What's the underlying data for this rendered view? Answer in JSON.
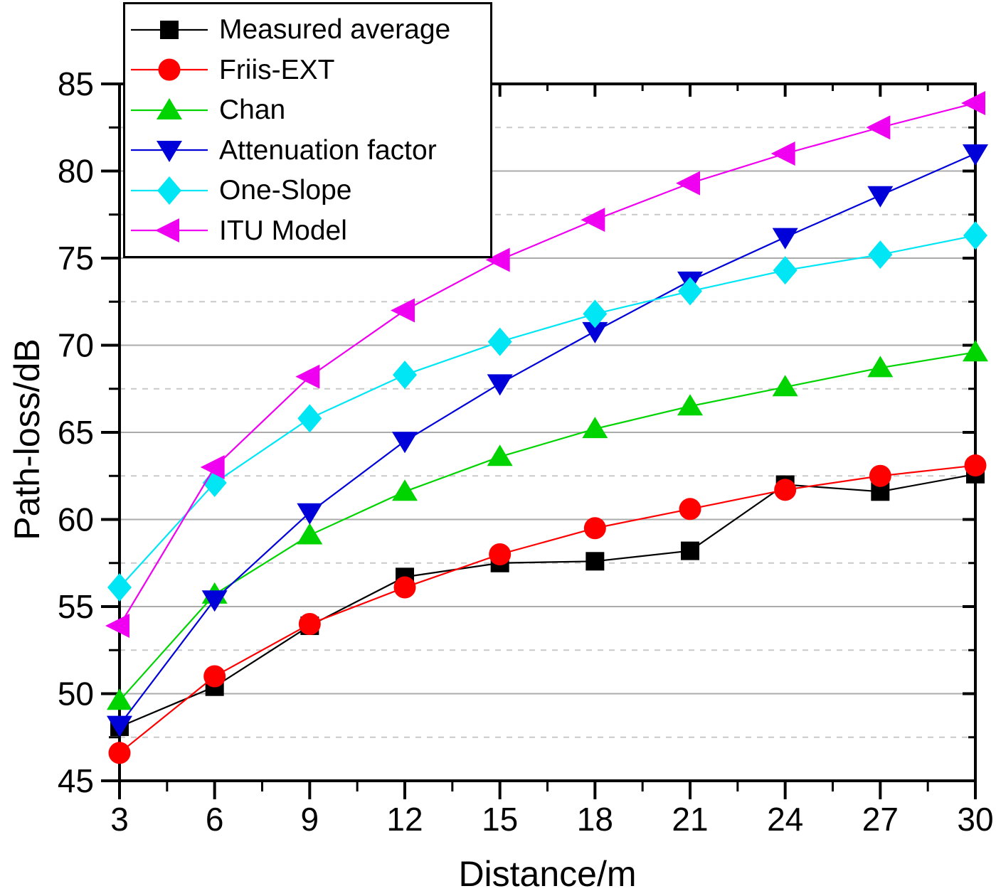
{
  "chart_data": {
    "type": "line",
    "title": "",
    "xlabel": "Distance/m",
    "ylabel": "Path-loss/dB",
    "x": [
      3,
      6,
      9,
      12,
      15,
      18,
      21,
      24,
      27,
      30
    ],
    "xlim": [
      3,
      30
    ],
    "ylim": [
      45,
      85
    ],
    "x_major_ticks": [
      3,
      6,
      9,
      12,
      15,
      18,
      21,
      24,
      27,
      30
    ],
    "x_minor_ticks": [
      4.5,
      7.5,
      10.5,
      13.5,
      16.5,
      19.5,
      22.5,
      25.5,
      28.5
    ],
    "y_major_ticks": [
      45,
      50,
      55,
      60,
      65,
      70,
      75,
      80,
      85
    ],
    "y_minor_ticks": [
      47.5,
      52.5,
      57.5,
      62.5,
      67.5,
      72.5,
      77.5,
      82.5
    ],
    "grid": {
      "horizontal_major": "solid",
      "horizontal_minor": "dashed",
      "vertical": "none"
    },
    "legend_position": "top-left",
    "series": [
      {
        "name": "Measured average",
        "color": "#000000",
        "marker": "square",
        "values": [
          48.1,
          50.4,
          53.9,
          56.7,
          57.5,
          57.6,
          58.2,
          62.0,
          61.6,
          62.6
        ]
      },
      {
        "name": "Friis-EXT",
        "color": "#FF0000",
        "marker": "circle",
        "values": [
          46.6,
          51.0,
          54.0,
          56.1,
          58.0,
          59.5,
          60.6,
          61.7,
          62.5,
          63.1
        ]
      },
      {
        "name": "Chan",
        "color": "#00D400",
        "marker": "triangle-up",
        "values": [
          49.6,
          55.7,
          59.1,
          61.6,
          63.6,
          65.2,
          66.5,
          67.6,
          68.7,
          69.6
        ]
      },
      {
        "name": "Attenuation factor",
        "color": "#0000D9",
        "marker": "triangle-down",
        "values": [
          48.2,
          55.4,
          60.4,
          64.5,
          67.8,
          70.8,
          73.7,
          76.2,
          78.6,
          81.0
        ]
      },
      {
        "name": "One-Slope",
        "color": "#00E6F5",
        "marker": "diamond",
        "values": [
          56.1,
          62.1,
          65.8,
          68.3,
          70.2,
          71.8,
          73.1,
          74.3,
          75.2,
          76.3
        ]
      },
      {
        "name": "ITU Model",
        "color": "#F000F0",
        "marker": "triangle-left",
        "values": [
          53.9,
          63.0,
          68.2,
          72.0,
          74.9,
          77.2,
          79.3,
          81.0,
          82.5,
          83.9
        ]
      }
    ],
    "axis_colors": {
      "frame": "#000000",
      "major_grid": "#ABABAB",
      "minor_grid": "#C9C9C9"
    }
  }
}
